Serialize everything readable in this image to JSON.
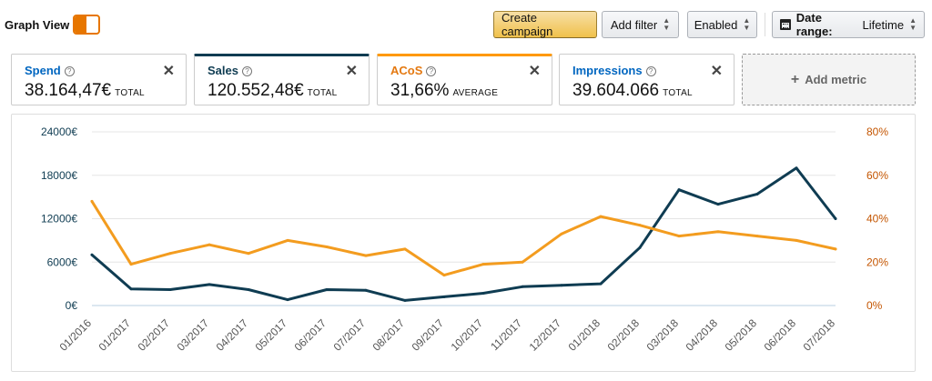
{
  "toolbar": {
    "graph_view_label": "Graph View",
    "create_campaign": "Create campaign",
    "add_filter": "Add filter",
    "enabled": "Enabled",
    "date_range_label": "Date range:",
    "date_range_value": "Lifetime"
  },
  "metrics": [
    {
      "title": "Spend",
      "value": "38.164,47€",
      "unit": "TOTAL",
      "title_color": "#0066c0"
    },
    {
      "title": "Sales",
      "value": "120.552,48€",
      "unit": "TOTAL",
      "title_color": "#0f3c52"
    },
    {
      "title": "ACoS",
      "value": "31,66%",
      "unit": "AVERAGE",
      "title_color": "#e47911"
    },
    {
      "title": "Impressions",
      "value": "39.604.066",
      "unit": "TOTAL",
      "title_color": "#0066c0"
    }
  ],
  "add_metric_label": "Add metric",
  "colors": {
    "sales_line": "#0f3c52",
    "acos_line": "#f39c1f",
    "left_axis": "#0f3c52",
    "right_axis": "#c45500",
    "grid": "#e5e5e5",
    "toggle_accent": "#e77600"
  },
  "chart_data": {
    "type": "line",
    "categories": [
      "01/2016",
      "01/2017",
      "02/2017",
      "03/2017",
      "04/2017",
      "05/2017",
      "06/2017",
      "07/2017",
      "08/2017",
      "09/2017",
      "10/2017",
      "11/2017",
      "12/2017",
      "01/2018",
      "02/2018",
      "03/2018",
      "04/2018",
      "05/2018",
      "06/2018",
      "07/2018"
    ],
    "series": [
      {
        "name": "Sales",
        "axis": "left",
        "values": [
          7000,
          2300,
          2200,
          2900,
          2200,
          800,
          2200,
          2100,
          700,
          1200,
          1700,
          2600,
          2800,
          3000,
          8000,
          16000,
          14000,
          15400,
          19000,
          12000
        ]
      },
      {
        "name": "ACoS",
        "axis": "right",
        "values": [
          48,
          19,
          24,
          28,
          24,
          30,
          27,
          23,
          26,
          14,
          19,
          20,
          33,
          41,
          37,
          32,
          34,
          32,
          30,
          26
        ]
      }
    ],
    "y_left": {
      "ticks": [
        "24000€",
        "18000€",
        "12000€",
        "6000€",
        "0€"
      ],
      "range": [
        0,
        24000
      ]
    },
    "y_right": {
      "ticks": [
        "80%",
        "60%",
        "40%",
        "20%",
        "0%"
      ],
      "range": [
        0,
        80
      ]
    },
    "grid": true
  }
}
